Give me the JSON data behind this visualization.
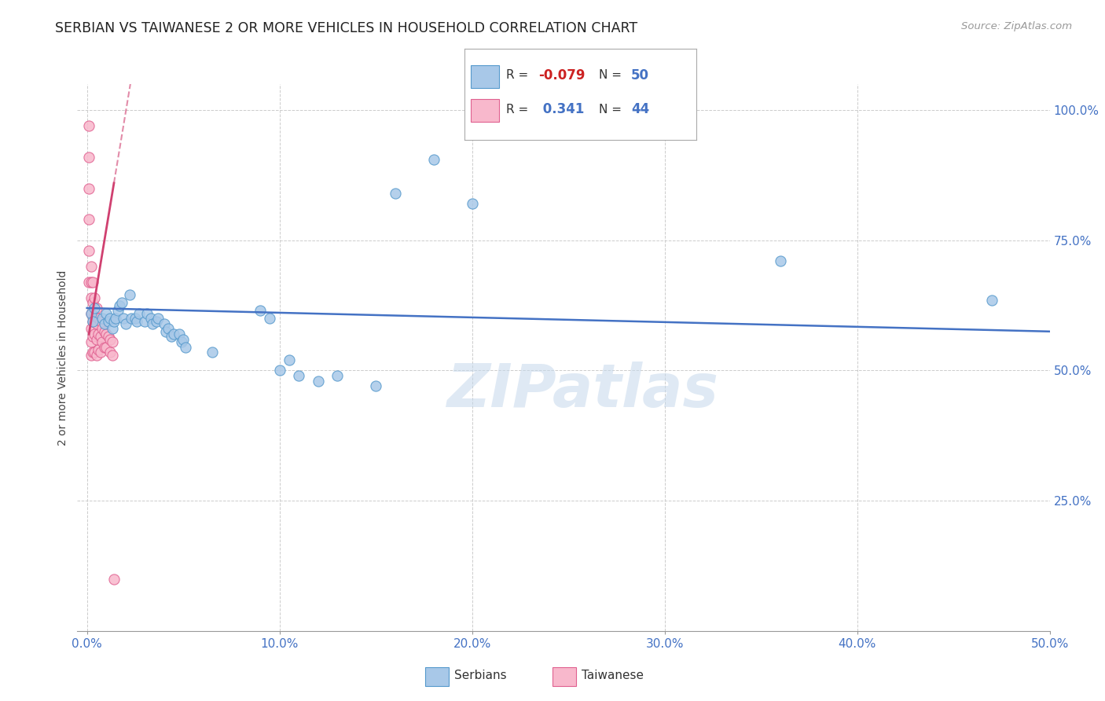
{
  "title": "SERBIAN VS TAIWANESE 2 OR MORE VEHICLES IN HOUSEHOLD CORRELATION CHART",
  "source": "Source: ZipAtlas.com",
  "ylabel": "2 or more Vehicles in Household",
  "xlim": [
    -0.005,
    0.5
  ],
  "ylim": [
    0.0,
    1.05
  ],
  "xtick_labels": [
    "0.0%",
    "10.0%",
    "20.0%",
    "30.0%",
    "40.0%",
    "50.0%"
  ],
  "xtick_vals": [
    0.0,
    0.1,
    0.2,
    0.3,
    0.4,
    0.5
  ],
  "ytick_labels": [
    "25.0%",
    "50.0%",
    "75.0%",
    "100.0%"
  ],
  "ytick_vals": [
    0.25,
    0.5,
    0.75,
    1.0
  ],
  "watermark": "ZIPatlas",
  "legend_r_serbian": "-0.079",
  "legend_n_serbian": "50",
  "legend_r_taiwanese": "0.341",
  "legend_n_taiwanese": "44",
  "serbian_color": "#a8c8e8",
  "serbian_edge_color": "#5599cc",
  "taiwanese_color": "#f8b8cc",
  "taiwanese_edge_color": "#e06090",
  "serbian_line_color": "#4472c4",
  "taiwanese_line_color": "#d04070",
  "background_color": "#ffffff",
  "grid_color": "#cccccc",
  "title_color": "#222222",
  "axis_color": "#4472c4",
  "marker_size": 90,
  "serbian_points_x": [
    0.002,
    0.003,
    0.004,
    0.008,
    0.009,
    0.01,
    0.011,
    0.012,
    0.013,
    0.014,
    0.015,
    0.016,
    0.017,
    0.018,
    0.019,
    0.02,
    0.022,
    0.023,
    0.025,
    0.026,
    0.027,
    0.03,
    0.031,
    0.033,
    0.034,
    0.036,
    0.037,
    0.04,
    0.041,
    0.042,
    0.044,
    0.045,
    0.048,
    0.049,
    0.05,
    0.051,
    0.065,
    0.09,
    0.095,
    0.1,
    0.105,
    0.11,
    0.12,
    0.13,
    0.15,
    0.16,
    0.18,
    0.2,
    0.36,
    0.47
  ],
  "serbian_points_y": [
    0.61,
    0.595,
    0.62,
    0.6,
    0.59,
    0.61,
    0.595,
    0.6,
    0.58,
    0.595,
    0.6,
    0.615,
    0.625,
    0.63,
    0.6,
    0.59,
    0.645,
    0.6,
    0.6,
    0.595,
    0.61,
    0.595,
    0.61,
    0.6,
    0.59,
    0.595,
    0.6,
    0.59,
    0.575,
    0.58,
    0.565,
    0.57,
    0.57,
    0.555,
    0.56,
    0.545,
    0.535,
    0.615,
    0.6,
    0.5,
    0.52,
    0.49,
    0.48,
    0.49,
    0.47,
    0.84,
    0.905,
    0.82,
    0.71,
    0.635
  ],
  "taiwanese_points_x": [
    0.001,
    0.001,
    0.001,
    0.001,
    0.001,
    0.001,
    0.002,
    0.002,
    0.002,
    0.002,
    0.002,
    0.002,
    0.002,
    0.003,
    0.003,
    0.003,
    0.003,
    0.003,
    0.004,
    0.004,
    0.004,
    0.004,
    0.005,
    0.005,
    0.005,
    0.005,
    0.006,
    0.006,
    0.006,
    0.007,
    0.007,
    0.007,
    0.008,
    0.008,
    0.009,
    0.009,
    0.01,
    0.01,
    0.011,
    0.012,
    0.012,
    0.013,
    0.013,
    0.014
  ],
  "taiwanese_points_y": [
    0.97,
    0.91,
    0.85,
    0.79,
    0.73,
    0.67,
    0.7,
    0.67,
    0.64,
    0.61,
    0.58,
    0.555,
    0.53,
    0.67,
    0.63,
    0.595,
    0.565,
    0.535,
    0.64,
    0.605,
    0.57,
    0.535,
    0.62,
    0.59,
    0.56,
    0.53,
    0.6,
    0.57,
    0.54,
    0.595,
    0.565,
    0.535,
    0.58,
    0.555,
    0.575,
    0.545,
    0.57,
    0.545,
    0.565,
    0.56,
    0.535,
    0.555,
    0.53,
    0.1
  ]
}
